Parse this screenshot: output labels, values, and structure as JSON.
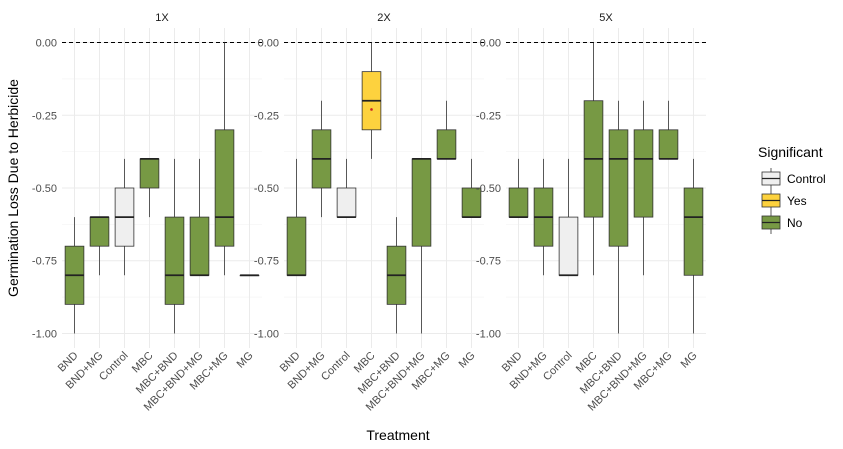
{
  "chart_data": {
    "type": "boxplot",
    "xlabel": "Treatment",
    "ylabel": "Germination Loss Due to Herbicide",
    "ylim": [
      -1.05,
      0.05
    ],
    "y_ticks": [
      {
        "value": 0,
        "label": "0.00"
      },
      {
        "value": -0.25,
        "label": "-0.25"
      },
      {
        "value": -0.5,
        "label": "-0.50"
      },
      {
        "value": -0.75,
        "label": "-0.75"
      },
      {
        "value": -1.0,
        "label": "-1.00"
      }
    ],
    "reference_line": {
      "value": 0,
      "style": "dashed"
    },
    "categories": [
      "BND",
      "BND+MG",
      "Control",
      "MBC",
      "MBC+BND",
      "MBC+BND+MG",
      "MBC+MG",
      "MG"
    ],
    "legend": {
      "title": "Significant",
      "entries": [
        {
          "key": "Control",
          "label": "Control",
          "color": "#efefef"
        },
        {
          "key": "Yes",
          "label": "Yes",
          "color": "#fdd23e"
        },
        {
          "key": "No",
          "label": "No",
          "color": "#779944"
        }
      ]
    },
    "panels": [
      {
        "title": "1X",
        "boxes": [
          {
            "category": "BND",
            "significant": "No",
            "min": -1.0,
            "q1": -0.9,
            "median": -0.8,
            "q3": -0.7,
            "max": -0.6
          },
          {
            "category": "BND+MG",
            "significant": "No",
            "min": -0.8,
            "q1": -0.7,
            "median": -0.6,
            "q3": -0.6,
            "max": -0.6
          },
          {
            "category": "Control",
            "significant": "Control",
            "min": -0.8,
            "q1": -0.7,
            "median": -0.6,
            "q3": -0.5,
            "max": -0.4
          },
          {
            "category": "MBC",
            "significant": "No",
            "min": -0.6,
            "q1": -0.5,
            "median": -0.4,
            "q3": -0.4,
            "max": -0.4
          },
          {
            "category": "MBC+BND",
            "significant": "No",
            "min": -1.0,
            "q1": -0.9,
            "median": -0.8,
            "q3": -0.6,
            "max": -0.4
          },
          {
            "category": "MBC+BND+MG",
            "significant": "No",
            "min": -0.8,
            "q1": -0.8,
            "median": -0.8,
            "q3": -0.6,
            "max": -0.4
          },
          {
            "category": "MBC+MG",
            "significant": "No",
            "min": -0.8,
            "q1": -0.7,
            "median": -0.6,
            "q3": -0.3,
            "max": 0.0
          },
          {
            "category": "MG",
            "significant": "No",
            "min": -0.8,
            "q1": -0.8,
            "median": -0.8,
            "q3": -0.8,
            "max": -0.8
          }
        ]
      },
      {
        "title": "2X",
        "boxes": [
          {
            "category": "BND",
            "significant": "No",
            "min": -0.8,
            "q1": -0.8,
            "median": -0.8,
            "q3": -0.6,
            "max": -0.4
          },
          {
            "category": "BND+MG",
            "significant": "No",
            "min": -0.6,
            "q1": -0.5,
            "median": -0.4,
            "q3": -0.3,
            "max": -0.2
          },
          {
            "category": "Control",
            "significant": "Control",
            "min": -0.6,
            "q1": -0.6,
            "median": -0.6,
            "q3": -0.5,
            "max": -0.4
          },
          {
            "category": "MBC",
            "significant": "Yes",
            "min": -0.4,
            "q1": -0.3,
            "median": -0.2,
            "q3": -0.1,
            "max": 0.0,
            "mean": -0.23
          },
          {
            "category": "MBC+BND",
            "significant": "No",
            "min": -1.0,
            "q1": -0.9,
            "median": -0.8,
            "q3": -0.7,
            "max": -0.6
          },
          {
            "category": "MBC+BND+MG",
            "significant": "No",
            "min": -1.0,
            "q1": -0.7,
            "median": -0.4,
            "q3": -0.4,
            "max": -0.4
          },
          {
            "category": "MBC+MG",
            "significant": "No",
            "min": -0.4,
            "q1": -0.4,
            "median": -0.4,
            "q3": -0.3,
            "max": -0.2
          },
          {
            "category": "MG",
            "significant": "No",
            "min": -0.6,
            "q1": -0.6,
            "median": -0.6,
            "q3": -0.5,
            "max": -0.4
          }
        ]
      },
      {
        "title": "5X",
        "boxes": [
          {
            "category": "BND",
            "significant": "No",
            "min": -0.6,
            "q1": -0.6,
            "median": -0.6,
            "q3": -0.5,
            "max": -0.4
          },
          {
            "category": "BND+MG",
            "significant": "No",
            "min": -0.8,
            "q1": -0.7,
            "median": -0.6,
            "q3": -0.5,
            "max": -0.4
          },
          {
            "category": "Control",
            "significant": "Control",
            "min": -0.8,
            "q1": -0.8,
            "median": -0.8,
            "q3": -0.6,
            "max": -0.4
          },
          {
            "category": "MBC",
            "significant": "No",
            "min": -0.8,
            "q1": -0.6,
            "median": -0.4,
            "q3": -0.2,
            "max": 0.0
          },
          {
            "category": "MBC+BND",
            "significant": "No",
            "min": -1.0,
            "q1": -0.7,
            "median": -0.4,
            "q3": -0.3,
            "max": -0.2
          },
          {
            "category": "MBC+BND+MG",
            "significant": "No",
            "min": -0.8,
            "q1": -0.6,
            "median": -0.4,
            "q3": -0.3,
            "max": -0.2
          },
          {
            "category": "MBC+MG",
            "significant": "No",
            "min": -0.4,
            "q1": -0.4,
            "median": -0.4,
            "q3": -0.3,
            "max": -0.2
          },
          {
            "category": "MG",
            "significant": "No",
            "min": -1.0,
            "q1": -0.8,
            "median": -0.6,
            "q3": -0.5,
            "max": -0.4
          }
        ]
      }
    ]
  }
}
